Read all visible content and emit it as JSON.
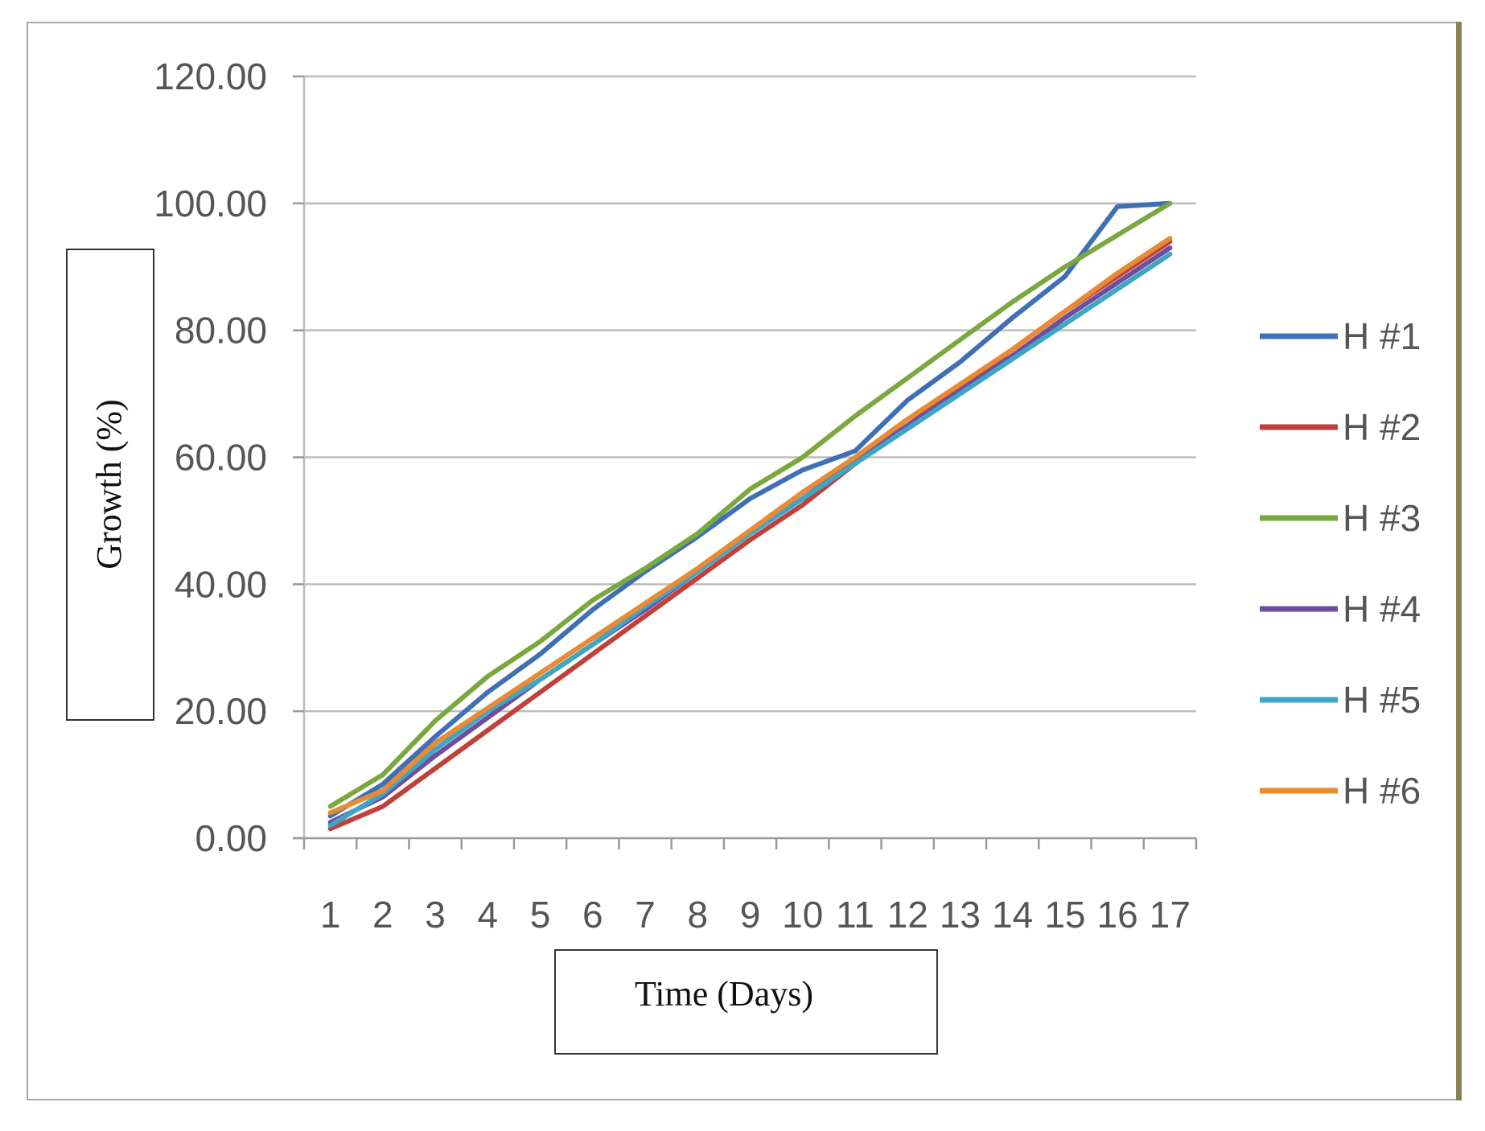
{
  "chart_data": {
    "type": "line",
    "title": "",
    "xlabel": "Time (Days)",
    "ylabel": "Growth (%)",
    "ylim": [
      0,
      120
    ],
    "yticks": [
      "0.00",
      "20.00",
      "40.00",
      "60.00",
      "80.00",
      "100.00",
      "120.00"
    ],
    "categories": [
      "1",
      "2",
      "3",
      "4",
      "5",
      "6",
      "7",
      "8",
      "9",
      "10",
      "11",
      "12",
      "13",
      "14",
      "15",
      "16",
      "17"
    ],
    "grid": true,
    "legend_position": "right",
    "series": [
      {
        "name": "H #1",
        "color": "#3f6fb5",
        "values": [
          3.5,
          8.5,
          16,
          23,
          29,
          36,
          42,
          47.5,
          53.5,
          58,
          61,
          69,
          75,
          82,
          88.5,
          99.5,
          100
        ]
      },
      {
        "name": "H #2",
        "color": "#c0413c",
        "values": [
          1.5,
          5,
          11,
          17,
          23,
          29,
          35,
          41,
          47,
          52.5,
          59,
          65,
          71,
          77,
          83,
          88.5,
          94
        ]
      },
      {
        "name": "H #3",
        "color": "#7aa83f",
        "values": [
          5,
          10,
          18.5,
          25.5,
          31,
          37.5,
          42.5,
          48,
          55,
          60,
          66.5,
          72.5,
          78.5,
          84.5,
          90,
          95,
          100
        ]
      },
      {
        "name": "H #4",
        "color": "#6e4f9e",
        "values": [
          2.5,
          6.5,
          13,
          19,
          25,
          30.5,
          36,
          42,
          48,
          53.5,
          59.5,
          65,
          70.5,
          76,
          82,
          87.5,
          93
        ]
      },
      {
        "name": "H #5",
        "color": "#3ea6c5",
        "values": [
          2,
          7,
          14,
          20,
          25,
          30.5,
          36.5,
          42,
          48,
          53.5,
          59,
          64.5,
          70,
          75.5,
          81,
          86.5,
          92
        ]
      },
      {
        "name": "H #6",
        "color": "#e98a35",
        "values": [
          4,
          7.5,
          15,
          20.5,
          26,
          31.5,
          37,
          42.5,
          48.5,
          54.5,
          60,
          66,
          71.5,
          77,
          83,
          89,
          94.5
        ]
      }
    ]
  }
}
